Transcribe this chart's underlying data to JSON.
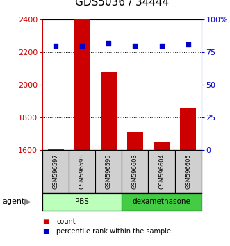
{
  "title": "GDS5036 / 34444",
  "samples": [
    "GSM596597",
    "GSM596598",
    "GSM596599",
    "GSM596603",
    "GSM596604",
    "GSM596605"
  ],
  "counts": [
    1610,
    2400,
    2080,
    1710,
    1650,
    1860
  ],
  "percentiles": [
    80,
    80,
    82,
    80,
    80,
    81
  ],
  "ylim_left": [
    1600,
    2400
  ],
  "ylim_right": [
    0,
    100
  ],
  "yticks_left": [
    1600,
    1800,
    2000,
    2200,
    2400
  ],
  "yticks_right": [
    0,
    25,
    50,
    75,
    100
  ],
  "ytick_labels_right": [
    "0",
    "25",
    "50",
    "75",
    "100%"
  ],
  "groups": [
    {
      "label": "PBS",
      "indices": [
        0,
        1,
        2
      ],
      "color": "#bbffbb"
    },
    {
      "label": "dexamethasone",
      "indices": [
        3,
        4,
        5
      ],
      "color": "#44cc44"
    }
  ],
  "bar_color": "#cc0000",
  "dot_color": "#0000cc",
  "bar_width": 0.6,
  "left_axis_color": "#cc0000",
  "right_axis_color": "#0000cc",
  "title_fontsize": 11,
  "tick_fontsize": 8,
  "legend_items": [
    {
      "color": "#cc0000",
      "label": "count"
    },
    {
      "color": "#0000cc",
      "label": "percentile rank within the sample"
    }
  ],
  "grid_lines": [
    1800,
    2000,
    2200
  ],
  "sample_bg_color": "#d0d0d0"
}
